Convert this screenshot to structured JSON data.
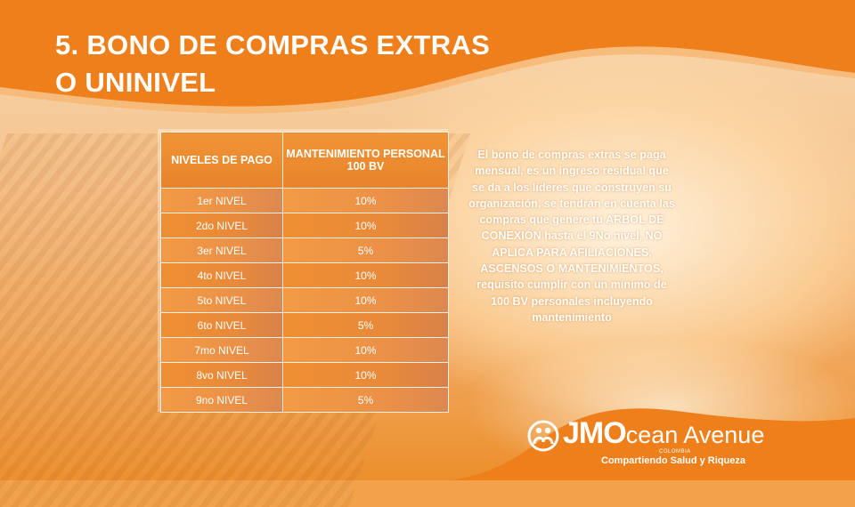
{
  "title": {
    "line1": "5. BONO DE COMPRAS EXTRAS",
    "line2": "O UNINIVEL"
  },
  "table": {
    "headers": [
      "NIVELES DE PAGO",
      "MANTENIMIENTO PERSONAL 100 BV"
    ],
    "rows": [
      [
        "1er NIVEL",
        "10%"
      ],
      [
        "2do NIVEL",
        "10%"
      ],
      [
        "3er NIVEL",
        "5%"
      ],
      [
        "4to NIVEL",
        "10%"
      ],
      [
        "5to NIVEL",
        "10%"
      ],
      [
        "6to NIVEL",
        "5%"
      ],
      [
        "7mo NIVEL",
        "10%"
      ],
      [
        "8vo NIVEL",
        "10%"
      ],
      [
        "9no NIVEL",
        "5%"
      ]
    ]
  },
  "description": "El bono de compras extras se paga mensual, es un ingreso residual que se da a los líderes que construyen su organización, se tendrán en cuenta las compras que genere tu ARBOL DE CONEXIÓN hasta el 9No nivel, NO APLICA PARA AFILIACIONES, ASCENSOS O MANTENIMIENTOS, requisito cumplir con un mínimo de 100 BV personales incluyendo mantenimiento",
  "logo": {
    "brand_jm": "JMO",
    "brand_rest": "cean Avenue",
    "country": "COLOMBIA",
    "slogan": "Compartiendo Salud y Riqueza",
    "icon": "people-circle-icon"
  },
  "colors": {
    "orange": "#ee7f1b",
    "table_orange": "#ef8e32",
    "text": "#ffffff"
  }
}
